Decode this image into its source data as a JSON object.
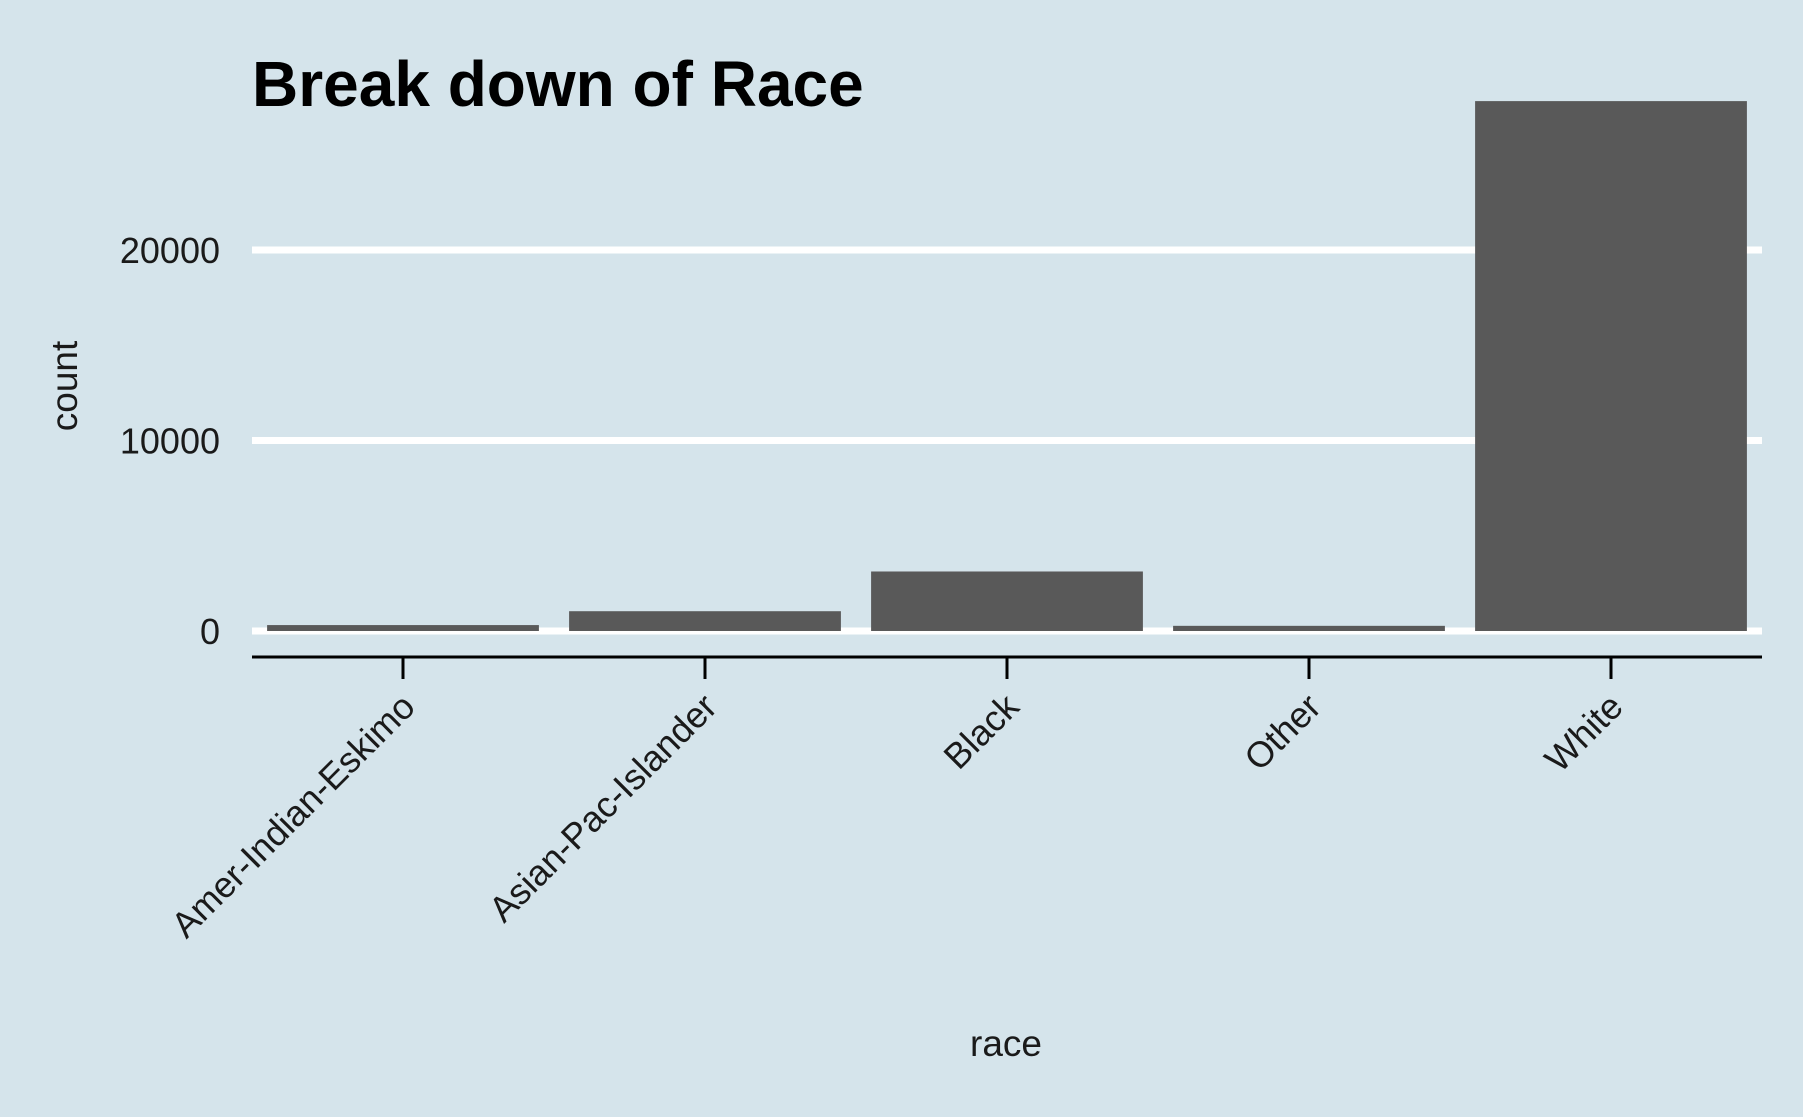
{
  "chart_data": {
    "type": "bar",
    "title": "Break down of Race",
    "xlabel": "race",
    "ylabel": "count",
    "categories": [
      "Amer-Indian-Eskimo",
      "Asian-Pac-Islander",
      "Black",
      "Other",
      "White"
    ],
    "values": [
      311,
      1039,
      3124,
      271,
      27816
    ],
    "ylim": [
      0,
      29800
    ],
    "yticks": [
      0,
      10000,
      20000
    ],
    "ytick_labels": [
      "0",
      "10000",
      "20000"
    ],
    "grid": "horizontal major only",
    "legend": "none",
    "colors": {
      "background": "#d5e4eb",
      "bar": "#595959",
      "grid": "#ffffff",
      "axis_line": "#000000",
      "text": "#1a1a1a"
    }
  }
}
